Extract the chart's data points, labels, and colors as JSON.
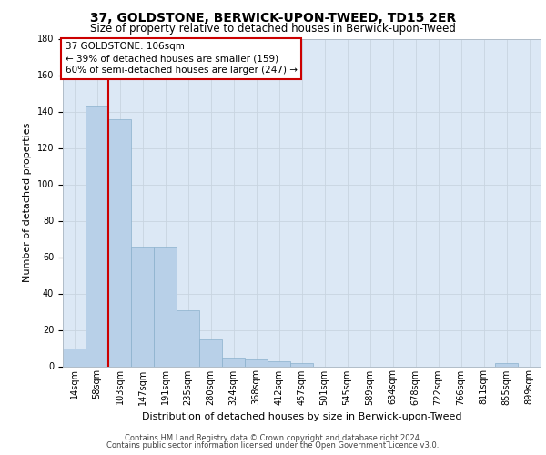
{
  "title": "37, GOLDSTONE, BERWICK-UPON-TWEED, TD15 2ER",
  "subtitle": "Size of property relative to detached houses in Berwick-upon-Tweed",
  "xlabel": "Distribution of detached houses by size in Berwick-upon-Tweed",
  "ylabel": "Number of detached properties",
  "categories": [
    "14sqm",
    "58sqm",
    "103sqm",
    "147sqm",
    "191sqm",
    "235sqm",
    "280sqm",
    "324sqm",
    "368sqm",
    "412sqm",
    "457sqm",
    "501sqm",
    "545sqm",
    "589sqm",
    "634sqm",
    "678sqm",
    "722sqm",
    "766sqm",
    "811sqm",
    "855sqm",
    "899sqm"
  ],
  "values": [
    10,
    143,
    136,
    66,
    66,
    31,
    15,
    5,
    4,
    3,
    2,
    0,
    0,
    0,
    0,
    0,
    0,
    0,
    0,
    2,
    0
  ],
  "bar_color": "#b8d0e8",
  "bar_edge_color": "#8ab0cc",
  "vline_x_pos": 1.5,
  "vline_color": "#cc0000",
  "annotation_line1": "37 GOLDSTONE: 106sqm",
  "annotation_line2": "← 39% of detached houses are smaller (159)",
  "annotation_line3": "60% of semi-detached houses are larger (247) →",
  "annotation_box_edge_color": "#cc0000",
  "ylim": [
    0,
    180
  ],
  "yticks": [
    0,
    20,
    40,
    60,
    80,
    100,
    120,
    140,
    160,
    180
  ],
  "footer1": "Contains HM Land Registry data © Crown copyright and database right 2024.",
  "footer2": "Contains public sector information licensed under the Open Government Licence v3.0.",
  "plot_bg_color": "#dce8f5",
  "fig_bg_color": "#ffffff",
  "grid_color": "#c8d4e0",
  "title_fontsize": 10,
  "subtitle_fontsize": 8.5,
  "ylabel_fontsize": 8,
  "xlabel_fontsize": 8,
  "tick_fontsize": 7,
  "annotation_fontsize": 7.5,
  "footer_fontsize": 6
}
